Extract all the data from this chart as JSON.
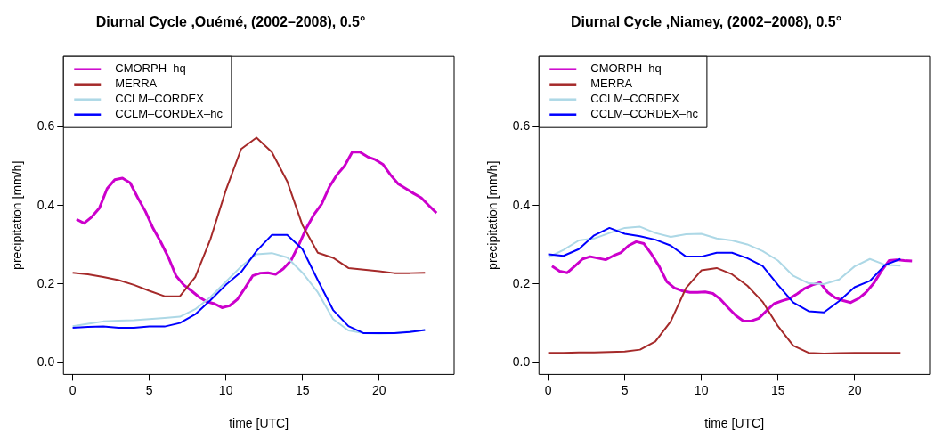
{
  "chart_data": [
    {
      "type": "line",
      "title": "Diurnal Cycle ,Ouémé, (2002–2008), 0.5°",
      "xlabel": "time [UTC]",
      "ylabel": "precipitation [mm/h]",
      "xlim": [
        -0.6,
        24.9
      ],
      "ylim": [
        -0.03,
        0.78
      ],
      "xticks": [
        0,
        5,
        10,
        15,
        20
      ],
      "yticks": [
        {
          "value": 0,
          "label": "0.0"
        },
        0.2,
        0.4,
        0.6
      ],
      "legend": "top left",
      "marker": "none",
      "line_style": "solid",
      "x": [
        0,
        1,
        2,
        3,
        4,
        5,
        6,
        7,
        8,
        9,
        10,
        11,
        12,
        13,
        14,
        15,
        16,
        17,
        18,
        19,
        20,
        21,
        22,
        23
      ],
      "series": [
        {
          "name": "CMORPH–hq",
          "color": "#cc00cc",
          "x": [
            0.25,
            0.75,
            1.25,
            1.75,
            2.25,
            2.75,
            3.25,
            3.75,
            4.25,
            4.75,
            5.25,
            5.75,
            6.25,
            6.75,
            7.25,
            7.75,
            8.25,
            8.75,
            9.25,
            9.75,
            10.25,
            10.75,
            11.25,
            11.75,
            12.25,
            12.75,
            13.25,
            13.75,
            14.25,
            14.75,
            15.25,
            15.75,
            16.25,
            16.75,
            17.25,
            17.75,
            18.25,
            18.75,
            19.25,
            19.75,
            20.25,
            20.75,
            21.25,
            21.75,
            22.25,
            22.75,
            23.25,
            23.75
          ],
          "values": [
            0.365,
            0.355,
            0.371,
            0.394,
            0.443,
            0.466,
            0.47,
            0.458,
            0.42,
            0.385,
            0.342,
            0.307,
            0.268,
            0.221,
            0.198,
            0.183,
            0.167,
            0.155,
            0.15,
            0.14,
            0.145,
            0.161,
            0.19,
            0.221,
            0.228,
            0.229,
            0.225,
            0.239,
            0.26,
            0.299,
            0.342,
            0.377,
            0.404,
            0.447,
            0.478,
            0.501,
            0.536,
            0.536,
            0.524,
            0.517,
            0.505,
            0.478,
            0.455,
            0.443,
            0.431,
            0.42,
            0.4,
            0.381
          ]
        },
        {
          "name": "MERRA",
          "color": "#a52a2a",
          "values": [
            0.229,
            0.225,
            0.218,
            0.21,
            0.198,
            0.183,
            0.169,
            0.169,
            0.218,
            0.315,
            0.439,
            0.544,
            0.573,
            0.536,
            0.462,
            0.35,
            0.28,
            0.267,
            0.241,
            0.237,
            0.233,
            0.228,
            0.228,
            0.229
          ]
        },
        {
          "name": "CCLM–CORDEX",
          "color": "#add8e6",
          "values": [
            0.093,
            0.099,
            0.105,
            0.107,
            0.108,
            0.111,
            0.114,
            0.117,
            0.136,
            0.167,
            0.206,
            0.245,
            0.276,
            0.279,
            0.268,
            0.229,
            0.179,
            0.111,
            0.082,
            0.075,
            0.074,
            0.075,
            0.079,
            0.083
          ]
        },
        {
          "name": "CCLM–CORDEX–hc",
          "color": "#0000ff",
          "values": [
            0.089,
            0.091,
            0.092,
            0.089,
            0.089,
            0.092,
            0.092,
            0.101,
            0.123,
            0.159,
            0.198,
            0.231,
            0.284,
            0.325,
            0.325,
            0.289,
            0.21,
            0.134,
            0.093,
            0.075,
            0.075,
            0.075,
            0.078,
            0.083
          ]
        }
      ]
    },
    {
      "type": "line",
      "title": "Diurnal Cycle ,Niamey, (2002–2008), 0.5°",
      "xlabel": "time [UTC]",
      "ylabel": "precipitation [mm/h]",
      "xlim": [
        -0.6,
        24.9
      ],
      "ylim": [
        -0.03,
        0.78
      ],
      "xticks": [
        0,
        5,
        10,
        15,
        20
      ],
      "yticks": [
        {
          "value": 0,
          "label": "0.0"
        },
        0.2,
        0.4,
        0.6
      ],
      "legend": "top left",
      "marker": "none",
      "line_style": "solid",
      "x": [
        0,
        1,
        2,
        3,
        4,
        5,
        6,
        7,
        8,
        9,
        10,
        11,
        12,
        13,
        14,
        15,
        16,
        17,
        18,
        19,
        20,
        21,
        22,
        23
      ],
      "series": [
        {
          "name": "CMORPH–hq",
          "color": "#cc00cc",
          "x": [
            0.25,
            0.75,
            1.25,
            1.75,
            2.25,
            2.75,
            3.25,
            3.75,
            4.25,
            4.75,
            5.25,
            5.75,
            6.25,
            6.75,
            7.25,
            7.75,
            8.25,
            8.75,
            9.25,
            9.75,
            10.25,
            10.75,
            11.25,
            11.75,
            12.25,
            12.75,
            13.25,
            13.75,
            14.25,
            14.75,
            15.25,
            15.75,
            16.25,
            16.75,
            17.25,
            17.75,
            18.25,
            18.75,
            19.25,
            19.75,
            20.25,
            20.75,
            21.25,
            21.75,
            22.25,
            22.75,
            23.25,
            23.75
          ],
          "values": [
            0.246,
            0.233,
            0.229,
            0.246,
            0.264,
            0.27,
            0.266,
            0.262,
            0.272,
            0.28,
            0.298,
            0.308,
            0.303,
            0.276,
            0.245,
            0.206,
            0.19,
            0.183,
            0.179,
            0.179,
            0.18,
            0.176,
            0.161,
            0.14,
            0.12,
            0.106,
            0.106,
            0.113,
            0.132,
            0.15,
            0.157,
            0.163,
            0.175,
            0.189,
            0.198,
            0.204,
            0.179,
            0.165,
            0.158,
            0.153,
            0.163,
            0.179,
            0.202,
            0.233,
            0.26,
            0.262,
            0.26,
            0.259
          ]
        },
        {
          "name": "MERRA",
          "color": "#a52a2a",
          "values": [
            0.025,
            0.025,
            0.026,
            0.026,
            0.027,
            0.028,
            0.033,
            0.054,
            0.105,
            0.19,
            0.235,
            0.241,
            0.225,
            0.196,
            0.155,
            0.093,
            0.043,
            0.025,
            0.023,
            0.024,
            0.025,
            0.025,
            0.025,
            0.025
          ]
        },
        {
          "name": "CCLM–CORDEX",
          "color": "#add8e6",
          "values": [
            0.268,
            0.287,
            0.311,
            0.316,
            0.33,
            0.343,
            0.346,
            0.33,
            0.32,
            0.327,
            0.328,
            0.316,
            0.311,
            0.301,
            0.284,
            0.26,
            0.221,
            0.202,
            0.2,
            0.212,
            0.245,
            0.264,
            0.249,
            0.247
          ]
        },
        {
          "name": "CCLM–CORDEX–hc",
          "color": "#0000ff",
          "values": [
            0.276,
            0.272,
            0.289,
            0.324,
            0.343,
            0.328,
            0.322,
            0.313,
            0.298,
            0.27,
            0.27,
            0.28,
            0.28,
            0.266,
            0.246,
            0.198,
            0.153,
            0.131,
            0.128,
            0.157,
            0.192,
            0.208,
            0.249,
            0.264
          ]
        }
      ]
    }
  ]
}
